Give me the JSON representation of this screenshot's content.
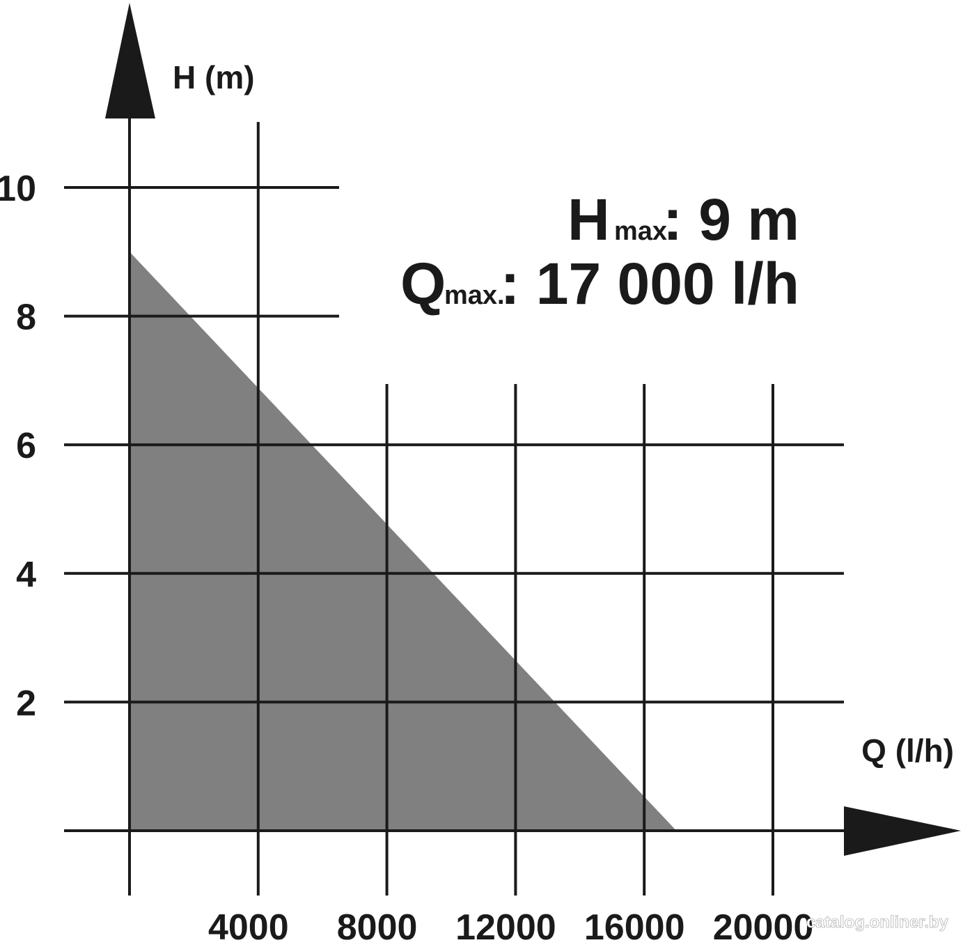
{
  "chart_data": {
    "type": "area",
    "xlabel": "Q (l/h)",
    "ylabel": "H (m)",
    "x_ticks": [
      "4000",
      "8000",
      "12000",
      "16000",
      "20000"
    ],
    "y_ticks": [
      "2",
      "4",
      "6",
      "8",
      "10"
    ],
    "xlim": [
      0,
      20000
    ],
    "ylim": [
      0,
      10
    ],
    "grid": true,
    "fill_color": "#808080",
    "series": [
      {
        "x": [
          0,
          0,
          17000
        ],
        "y": [
          0,
          9,
          0
        ]
      }
    ],
    "annotations": {
      "hmax_symbol": "H",
      "hmax_sub": "max.",
      "hmax_value": ": 9 m",
      "qmax_symbol": "Q",
      "qmax_sub": "max.",
      "qmax_value": ": 17 000 l/h"
    }
  },
  "watermark": "catalog.onliner.by"
}
